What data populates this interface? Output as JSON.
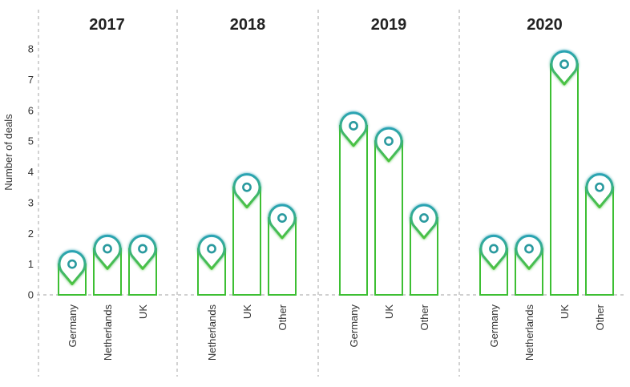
{
  "chart_data": {
    "type": "bar",
    "ylabel": "Number of deals",
    "ylim": [
      0,
      8
    ],
    "yticks": [
      "0",
      "1",
      "2",
      "3",
      "4",
      "5",
      "6",
      "7",
      "8"
    ],
    "grid": false,
    "panels": [
      {
        "title": "2017",
        "categories": [
          "Germany",
          "Netherlands",
          "UK"
        ],
        "values": [
          1,
          1.5,
          1.5
        ]
      },
      {
        "title": "2018",
        "categories": [
          "Netherlands",
          "UK",
          "Other"
        ],
        "values": [
          1.5,
          3.5,
          2.5
        ]
      },
      {
        "title": "2019",
        "categories": [
          "Germany",
          "UK",
          "Other"
        ],
        "values": [
          5.5,
          5,
          2.5
        ]
      },
      {
        "title": "2020",
        "categories": [
          "Germany",
          "Netherlands",
          "UK",
          "Other"
        ],
        "values": [
          1.5,
          1.5,
          7.5,
          3.5
        ]
      }
    ],
    "colors": {
      "bar_stroke": "#3dbf33",
      "pin_teal": "#2a9a9f",
      "pin_green": "#4cc33e",
      "divider": "#b5b5b5"
    }
  }
}
